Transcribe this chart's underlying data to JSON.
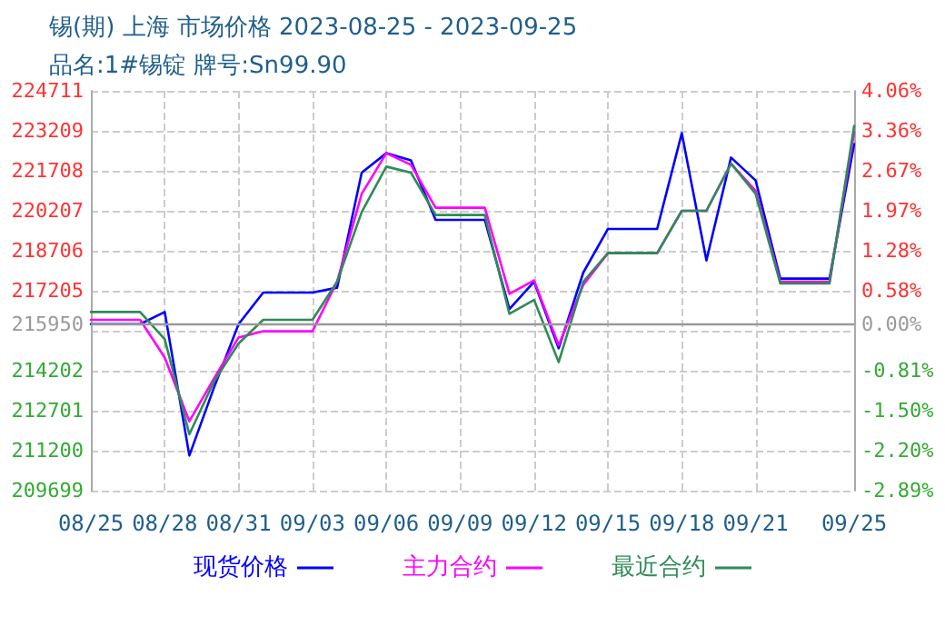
{
  "chart_data": {
    "type": "line",
    "title": "锡(期) 上海 市场价格 2023-08-25 - 2023-09-25",
    "subtitle": "品名:1#锡锭 牌号:Sn99.90",
    "x": [
      "2023-08-25",
      "2023-08-26",
      "2023-08-27",
      "2023-08-28",
      "2023-08-29",
      "2023-08-30",
      "2023-08-31",
      "2023-09-01",
      "2023-09-02",
      "2023-09-03",
      "2023-09-04",
      "2023-09-05",
      "2023-09-06",
      "2023-09-07",
      "2023-09-08",
      "2023-09-09",
      "2023-09-10",
      "2023-09-11",
      "2023-09-12",
      "2023-09-13",
      "2023-09-14",
      "2023-09-15",
      "2023-09-16",
      "2023-09-17",
      "2023-09-18",
      "2023-09-19",
      "2023-09-20",
      "2023-09-21",
      "2023-09-22",
      "2023-09-23",
      "2023-09-24",
      "2023-09-25"
    ],
    "series": [
      {
        "name": "现货价格",
        "color": "#0000ff",
        "values": [
          215950,
          215950,
          215950,
          216406,
          211016,
          213568,
          215950,
          217137,
          217137,
          217137,
          217320,
          221640,
          222370,
          222097,
          219866,
          219866,
          219866,
          216522,
          217546,
          215042,
          217887,
          219525,
          219525,
          219525,
          223121,
          218344,
          222207,
          221347,
          217662,
          217662,
          217662,
          222712
        ]
      },
      {
        "name": "主力合约",
        "color": "#ff00ff",
        "values": [
          216113,
          216113,
          216113,
          214700,
          212302,
          213907,
          215451,
          215683,
          215683,
          215683,
          217546,
          220842,
          222370,
          221934,
          220323,
          220323,
          220323,
          217091,
          217594,
          215157,
          217430,
          218617,
          218617,
          218617,
          220207,
          220207,
          221980,
          220958,
          217546,
          217546,
          217546,
          223162
        ]
      },
      {
        "name": "最近合约",
        "color": "#2e8b57",
        "values": [
          216406,
          216406,
          216406,
          215383,
          211814,
          213793,
          215226,
          216113,
          216113,
          216113,
          217546,
          220160,
          221866,
          221640,
          220050,
          220050,
          220050,
          216337,
          216863,
          214522,
          217546,
          218617,
          218617,
          218617,
          220207,
          220207,
          221980,
          220842,
          217478,
          217478,
          217478,
          223394
        ]
      }
    ],
    "xlim": [
      "2023-08-25",
      "2023-09-25"
    ],
    "xticks": [
      {
        "value": "2023-08-25",
        "label": "08/25"
      },
      {
        "value": "2023-08-28",
        "label": "08/28"
      },
      {
        "value": "2023-08-31",
        "label": "08/31"
      },
      {
        "value": "2023-09-03",
        "label": "09/03"
      },
      {
        "value": "2023-09-06",
        "label": "09/06"
      },
      {
        "value": "2023-09-09",
        "label": "09/09"
      },
      {
        "value": "2023-09-12",
        "label": "09/12"
      },
      {
        "value": "2023-09-15",
        "label": "09/15"
      },
      {
        "value": "2023-09-18",
        "label": "09/18"
      },
      {
        "value": "2023-09-21",
        "label": "09/21"
      },
      {
        "value": "2023-09-25",
        "label": "09/25"
      }
    ],
    "ylim": [
      209699,
      224711
    ],
    "yticks": [
      209699,
      211200,
      212701,
      214202,
      {
        "value": 215703,
        "label": null
      },
      215950,
      217205,
      218706,
      220207,
      221708,
      223209,
      224711
    ],
    "y2lim": [
      -2.89,
      4.06
    ],
    "y2ticks": [
      {
        "value": -2.89,
        "label": "-2.89%"
      },
      {
        "value": -2.2,
        "label": "-2.20%"
      },
      {
        "value": -1.5,
        "label": "-1.50%"
      },
      {
        "value": -0.81,
        "label": "-0.81%"
      },
      {
        "value": 0,
        "label": "0.00%"
      },
      {
        "value": 0.58,
        "label": "0.58%"
      },
      {
        "value": 1.28,
        "label": "1.28%"
      },
      {
        "value": 1.97,
        "label": "1.97%"
      },
      {
        "value": 2.67,
        "label": "2.67%"
      },
      {
        "value": 3.36,
        "label": "3.36%"
      },
      {
        "value": 4.06,
        "label": "4.06%"
      }
    ],
    "ref_lines": [
      {
        "axis": "y",
        "value": 215950,
        "color": "#999999",
        "line_style": "solid"
      }
    ],
    "grid": true,
    "legend": "bottom",
    "line_style": "solid",
    "marker": "none"
  }
}
